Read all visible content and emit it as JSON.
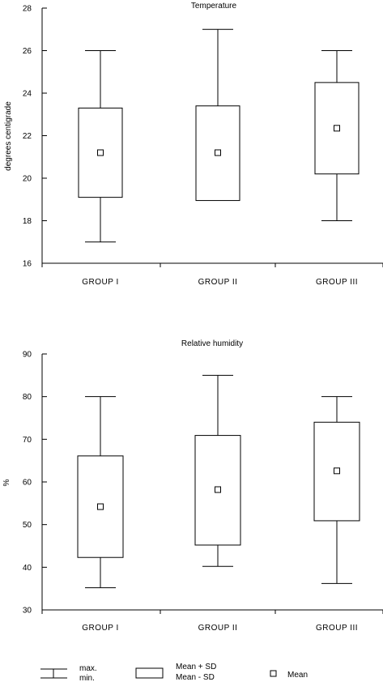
{
  "chart_data": [
    {
      "type": "box",
      "title": "Temperature",
      "xlabel": "",
      "ylabel": "degrees centigrade",
      "ylim": [
        16,
        28
      ],
      "yticks": [
        16,
        18,
        20,
        22,
        24,
        26,
        28
      ],
      "categories": [
        "GROUP I",
        "GROUP II",
        "GROUP III"
      ],
      "series": [
        {
          "max": 26,
          "min": 17,
          "mean_plus_sd": 23.3,
          "mean_minus_sd": 19.1,
          "mean": 21.2
        },
        {
          "max": 27,
          "min": 19,
          "mean_plus_sd": 23.4,
          "mean_minus_sd": 18.95,
          "mean": 21.2
        },
        {
          "max": 26,
          "min": 18,
          "mean_plus_sd": 24.5,
          "mean_minus_sd": 20.2,
          "mean": 22.35
        }
      ],
      "grid": false
    },
    {
      "type": "box",
      "title": "Relative humidity",
      "xlabel": "",
      "ylabel": "%",
      "ylim": [
        30,
        90
      ],
      "yticks": [
        30,
        40,
        50,
        60,
        70,
        80,
        90
      ],
      "categories": [
        "GROUP I",
        "GROUP II",
        "GROUP III"
      ],
      "series": [
        {
          "max": 80,
          "min": 35.2,
          "mean_plus_sd": 66.1,
          "mean_minus_sd": 42.3,
          "mean": 54.2
        },
        {
          "max": 85,
          "min": 40.2,
          "mean_plus_sd": 70.9,
          "mean_minus_sd": 45.2,
          "mean": 58.2
        },
        {
          "max": 80,
          "min": 36.2,
          "mean_plus_sd": 74.0,
          "mean_minus_sd": 50.9,
          "mean": 62.6
        }
      ],
      "grid": false
    }
  ],
  "legend": {
    "range_max_label": "max.",
    "range_min_label": "min.",
    "sd_plus_label": "Mean + SD",
    "sd_minus_label": "Mean - SD",
    "mean_label": "Mean"
  }
}
